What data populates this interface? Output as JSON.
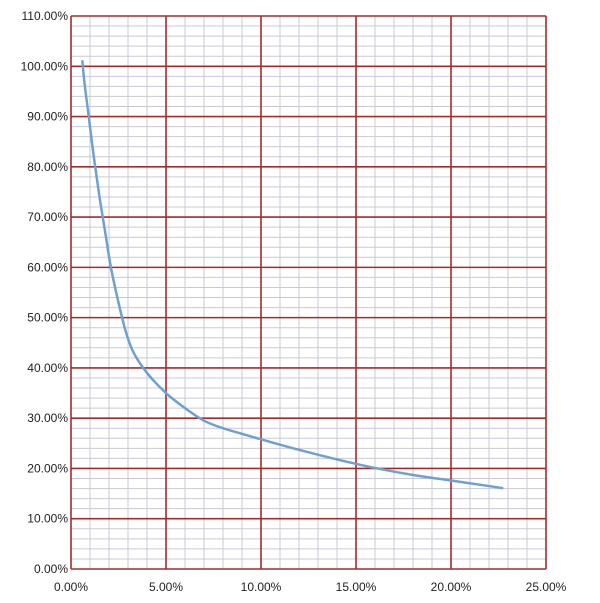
{
  "chart_data": {
    "type": "line",
    "title": "",
    "xlabel": "",
    "ylabel": "",
    "xlim": [
      0,
      25
    ],
    "ylim": [
      0,
      110
    ],
    "x_major_step": 5,
    "x_minor_step": 1,
    "y_major_step": 10,
    "y_minor_step": 2,
    "grid": true,
    "x_tick_labels": [
      "0.00%",
      "5.00%",
      "10.00%",
      "15.00%",
      "20.00%",
      "25.00%"
    ],
    "y_tick_labels": [
      "0.00%",
      "10.00%",
      "20.00%",
      "30.00%",
      "40.00%",
      "50.00%",
      "60.00%",
      "70.00%",
      "80.00%",
      "90.00%",
      "100.00%",
      "110.00%"
    ],
    "series": [
      {
        "color": "#6fa0cf",
        "x": [
          0.6,
          0.7,
          0.9,
          1.2,
          1.5,
          1.8,
          2.1,
          2.5,
          2.9,
          3.3,
          4.0,
          5.0,
          6.0,
          7.0,
          8.0,
          10.0,
          12.0,
          14.0,
          16.0,
          18.0,
          20.0,
          22.0,
          22.7
        ],
        "y": [
          101,
          97,
          91,
          82,
          74,
          67,
          60,
          53,
          47,
          43,
          39,
          35,
          32,
          29.5,
          28,
          25.8,
          23.7,
          21.8,
          20.1,
          18.7,
          17.6,
          16.5,
          16.1
        ]
      }
    ],
    "colors": {
      "major_grid": "#a52a2a",
      "minor_grid": "#c9c9d6",
      "axis": "#a52a2a",
      "background": "#ffffff"
    }
  }
}
